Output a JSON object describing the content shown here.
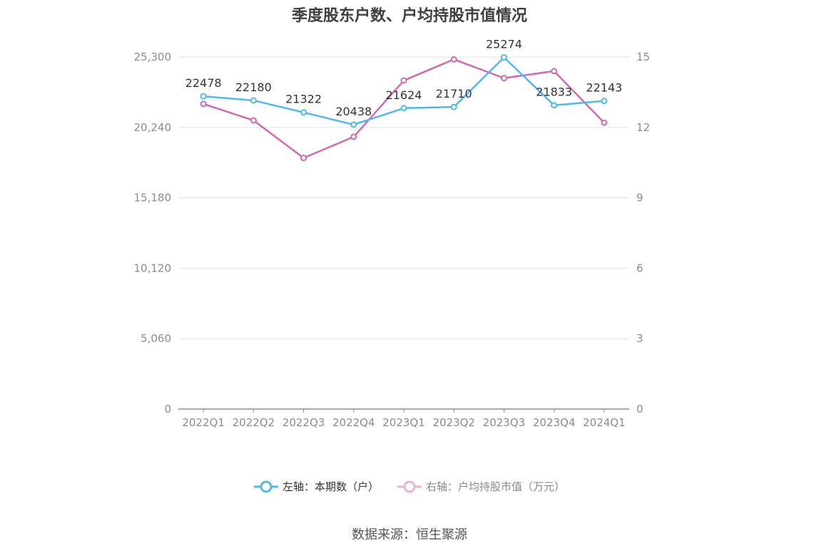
{
  "chart_data": {
    "type": "line",
    "title": "季度股东户数、户均持股市值情况",
    "categories": [
      "2022Q1",
      "2022Q2",
      "2022Q3",
      "2022Q4",
      "2023Q1",
      "2023Q2",
      "2023Q3",
      "2023Q4",
      "2024Q1"
    ],
    "left_axis": {
      "ticks": [
        "0",
        "5,060",
        "10,120",
        "15,180",
        "20,240",
        "25,300"
      ],
      "min": 0,
      "max": 25300
    },
    "right_axis": {
      "ticks": [
        "0",
        "3",
        "6",
        "9",
        "12",
        "15"
      ],
      "min": 0,
      "max": 15
    },
    "series": [
      {
        "name": "左轴：本期数（户）",
        "axis": "left",
        "color": "#4fb8ec",
        "values": [
          22478,
          22180,
          21322,
          20438,
          21624,
          21710,
          25274,
          21833,
          22143
        ],
        "labels": [
          "22478",
          "22180",
          "21322",
          "20438",
          "21624",
          "21710",
          "25274",
          "21833",
          "22143"
        ]
      },
      {
        "name": "右轴：户均持股市值（万元）",
        "axis": "right",
        "color": "#cf6aae",
        "values": [
          13.0,
          12.3,
          10.7,
          11.6,
          14.0,
          14.9,
          14.1,
          14.4,
          12.2
        ]
      }
    ],
    "legend_position": "bottom",
    "grid": true
  },
  "legend": {
    "left_label": "左轴：本期数（户）",
    "right_label": "右轴：户均持股市值（万元）"
  },
  "source": "数据来源：恒生聚源"
}
